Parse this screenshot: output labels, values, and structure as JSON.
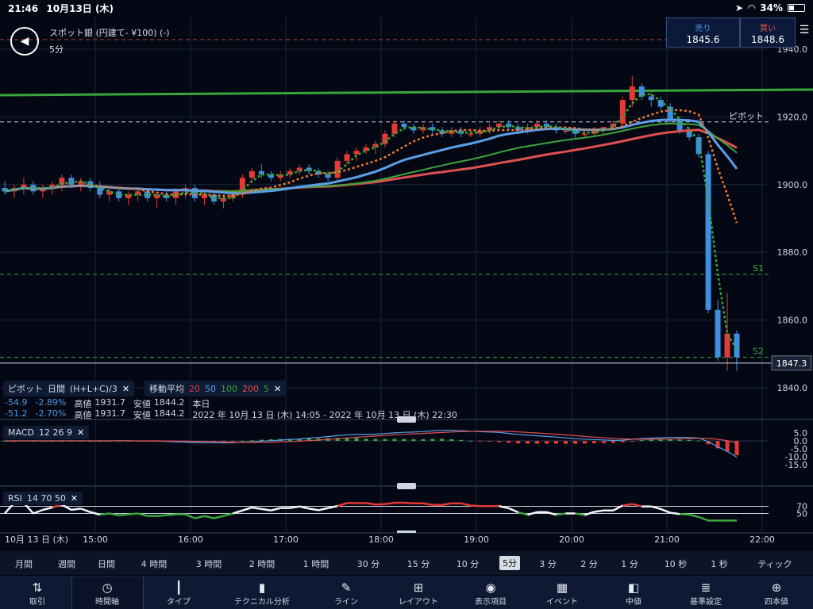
{
  "status": {
    "time": "21:46",
    "date": "10月13日 (木)",
    "battery": "34%",
    "battery_level": 0.34
  },
  "header": {
    "instrument": "スポット銀 (円建て- ¥100) (-)",
    "timeframe": "5分",
    "sell_label": "売り",
    "sell_value": "1845.6",
    "buy_label": "買い",
    "buy_value": "1848.6"
  },
  "chart": {
    "price_labels": [
      "1940.0",
      "1920.0",
      "1900.0",
      "1880.0",
      "1860.0",
      "1840.0"
    ],
    "pivot_label": "ピボット",
    "s1_label": "S1",
    "s2_label": "S2",
    "current_price": "1847.3",
    "time_labels": [
      "10月 13 日 (木)",
      "15:00",
      "16:00",
      "17:00",
      "18:00",
      "19:00",
      "20:00",
      "21:00",
      "22:00"
    ]
  },
  "legend": {
    "pivot_tag": "ピボット",
    "pivot_period": "日間",
    "pivot_formula": "(H+L+C)/3",
    "ma_tag": "移動平均",
    "ma_periods": [
      "20",
      "50",
      "100",
      "200",
      "5"
    ],
    "row1": {
      "change": "-54.9",
      "pct": "-2.89%",
      "high_label": "高値",
      "high": "1931.7",
      "low_label": "安値",
      "low": "1844.2",
      "period": "本日"
    },
    "row2": {
      "change": "-51.2",
      "pct": "-2.70%",
      "high_label": "高値",
      "high": "1931.7",
      "low_label": "安値",
      "low": "1844.2",
      "range": "2022 年 10月 13 日 (木) 14:05 - 2022 年 10月 13 日 (木) 22:30"
    }
  },
  "macd": {
    "label": "MACD",
    "params": "12  26  9",
    "ticks": [
      "5.0",
      "0.0",
      "-5.0",
      "-10.0",
      "-15.0"
    ]
  },
  "rsi": {
    "label": "RSI",
    "params": "14  70  50",
    "ticks": [
      "70",
      "50"
    ]
  },
  "intervals": [
    "月間",
    "週間",
    "日間",
    "4 時間",
    "3 時間",
    "2 時間",
    "1 時間",
    "30 分",
    "15 分",
    "10 分",
    "5分",
    "3 分",
    "2 分",
    "1 分",
    "10 秒",
    "1 秒",
    "ティック"
  ],
  "selected_interval": "5分",
  "toolbar": [
    "取引",
    "時間軸",
    "タイプ",
    "テクニカル分析",
    "ライン",
    "レイアウト",
    "表示項目",
    "イベント",
    "中値",
    "基準設定",
    "四本値"
  ],
  "colors": {
    "up": "#e53935",
    "down": "#3f8fdf",
    "ma20": "#e53935",
    "ma50": "#5aa0e8",
    "ma100": "#3aa53a",
    "ma200": "#e05050",
    "ma5": "#37a837",
    "pivot_trend": "#3aa53a",
    "bg": "#040814"
  },
  "chart_data": {
    "type": "candlestick",
    "price_axis": [
      1840,
      1860,
      1880,
      1900,
      1920,
      1940
    ],
    "pivot": 1918.5,
    "s1": 1873.5,
    "s2": 1849.0,
    "last": 1847.3,
    "candles": [
      [
        1899,
        1901,
        1897,
        1898
      ],
      [
        1898,
        1900,
        1896,
        1899
      ],
      [
        1899,
        1902,
        1897,
        1900
      ],
      [
        1900,
        1901,
        1897,
        1898
      ],
      [
        1898,
        1900,
        1896,
        1899
      ],
      [
        1899,
        1901,
        1897,
        1900
      ],
      [
        1900,
        1903,
        1898,
        1902
      ],
      [
        1902,
        1903,
        1899,
        1900
      ],
      [
        1900,
        1902,
        1898,
        1901
      ],
      [
        1901,
        1902,
        1898,
        1899
      ],
      [
        1899,
        1901,
        1896,
        1897
      ],
      [
        1897,
        1899,
        1895,
        1898
      ],
      [
        1898,
        1899,
        1895,
        1896
      ],
      [
        1896,
        1898,
        1894,
        1897
      ],
      [
        1897,
        1899,
        1895,
        1898
      ],
      [
        1898,
        1899,
        1895,
        1896
      ],
      [
        1896,
        1898,
        1893,
        1897
      ],
      [
        1897,
        1898,
        1895,
        1896
      ],
      [
        1896,
        1899,
        1894,
        1898
      ],
      [
        1898,
        1900,
        1896,
        1899
      ],
      [
        1899,
        1900,
        1895,
        1896
      ],
      [
        1896,
        1898,
        1894,
        1897
      ],
      [
        1897,
        1898,
        1894,
        1895
      ],
      [
        1895,
        1897,
        1893,
        1896
      ],
      [
        1896,
        1898,
        1895,
        1897
      ],
      [
        1897,
        1903,
        1896,
        1902
      ],
      [
        1902,
        1905,
        1901,
        1904
      ],
      [
        1904,
        1906,
        1902,
        1903
      ],
      [
        1903,
        1904,
        1901,
        1902
      ],
      [
        1902,
        1904,
        1901,
        1903
      ],
      [
        1903,
        1905,
        1902,
        1904
      ],
      [
        1904,
        1906,
        1903,
        1905
      ],
      [
        1905,
        1906,
        1903,
        1904
      ],
      [
        1904,
        1905,
        1902,
        1903
      ],
      [
        1903,
        1904,
        1901,
        1902
      ],
      [
        1902,
        1908,
        1901,
        1907
      ],
      [
        1907,
        1910,
        1906,
        1909
      ],
      [
        1909,
        1911,
        1907,
        1910
      ],
      [
        1910,
        1912,
        1909,
        1911
      ],
      [
        1911,
        1913,
        1909,
        1912
      ],
      [
        1912,
        1916,
        1911,
        1915
      ],
      [
        1915,
        1919,
        1914,
        1918
      ],
      [
        1918,
        1919,
        1916,
        1917
      ],
      [
        1917,
        1918,
        1915,
        1916
      ],
      [
        1916,
        1918,
        1915,
        1917
      ],
      [
        1917,
        1918,
        1915,
        1916
      ],
      [
        1916,
        1917,
        1914,
        1915
      ],
      [
        1915,
        1917,
        1914,
        1916
      ],
      [
        1916,
        1917,
        1914,
        1915
      ],
      [
        1915,
        1916,
        1914,
        1915
      ],
      [
        1915,
        1917,
        1914,
        1916
      ],
      [
        1916,
        1918,
        1915,
        1917
      ],
      [
        1917,
        1919,
        1916,
        1918
      ],
      [
        1918,
        1919,
        1916,
        1917
      ],
      [
        1917,
        1918,
        1915,
        1916
      ],
      [
        1916,
        1918,
        1915,
        1917
      ],
      [
        1917,
        1919,
        1916,
        1918
      ],
      [
        1918,
        1919,
        1916,
        1917
      ],
      [
        1917,
        1918,
        1915,
        1916
      ],
      [
        1916,
        1917,
        1915,
        1916
      ],
      [
        1916,
        1917,
        1914,
        1915
      ],
      [
        1915,
        1916,
        1914,
        1915
      ],
      [
        1915,
        1917,
        1914,
        1916
      ],
      [
        1916,
        1917,
        1915,
        1917
      ],
      [
        1917,
        1919,
        1916,
        1918
      ],
      [
        1918,
        1926,
        1917,
        1925
      ],
      [
        1925,
        1932,
        1923,
        1929
      ],
      [
        1929,
        1930,
        1925,
        1926
      ],
      [
        1926,
        1927,
        1923,
        1925
      ],
      [
        1925,
        1926,
        1922,
        1923
      ],
      [
        1923,
        1924,
        1918,
        1919
      ],
      [
        1919,
        1920,
        1915,
        1916
      ],
      [
        1916,
        1917,
        1913,
        1914
      ],
      [
        1914,
        1915,
        1908,
        1909
      ],
      [
        1909,
        1910,
        1862,
        1863
      ],
      [
        1863,
        1866,
        1848,
        1849
      ],
      [
        1849,
        1868,
        1845,
        1856
      ],
      [
        1856,
        1857,
        1845,
        1849
      ]
    ]
  }
}
